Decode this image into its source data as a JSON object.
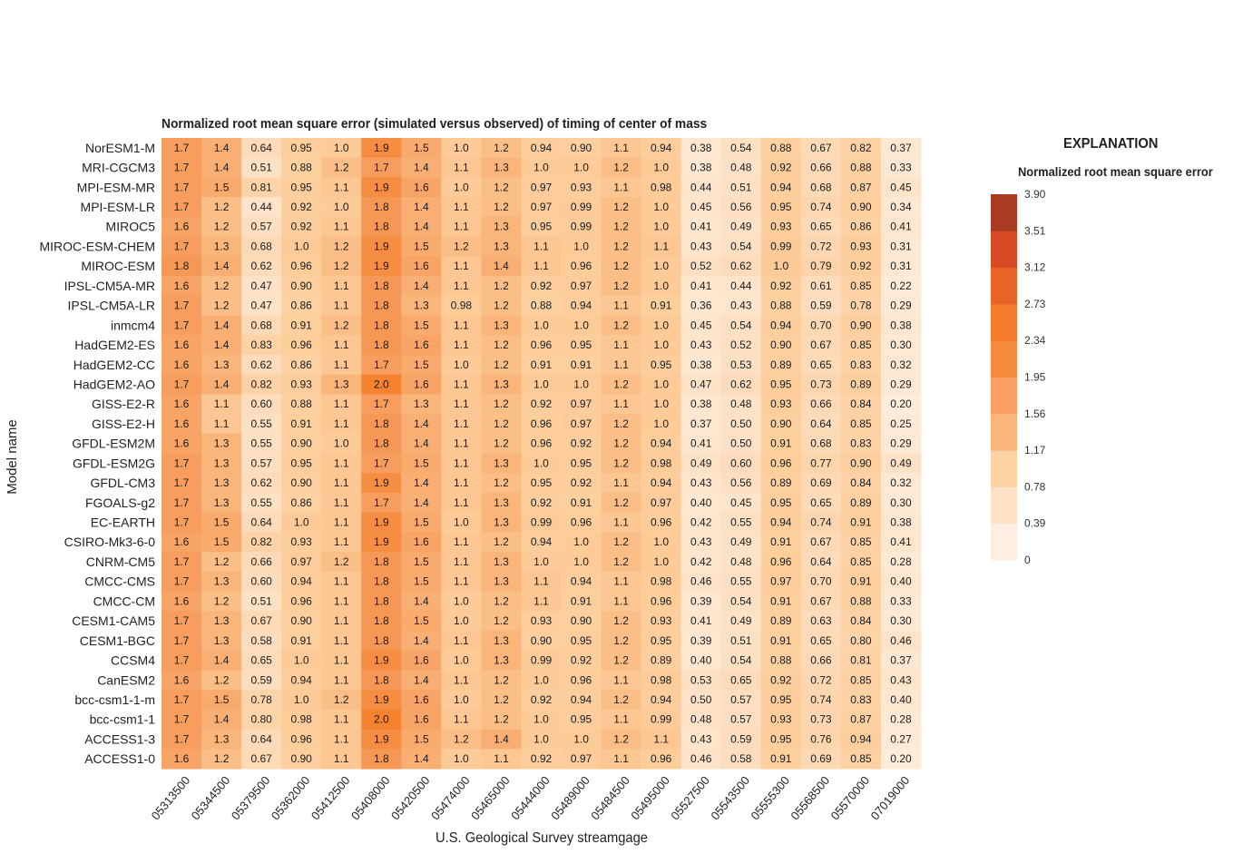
{
  "chart_data": {
    "type": "heatmap",
    "title": "Normalized root mean square error (simulated versus observed) of timing of center of mass",
    "xlabel": "U.S. Geological Survey streamgage",
    "ylabel": "Model name",
    "columns": [
      "05313500",
      "05344500",
      "05379500",
      "05362000",
      "05412500",
      "05408000",
      "05420500",
      "05474000",
      "05465000",
      "05444000",
      "05489000",
      "05484500",
      "05495000",
      "05527500",
      "05543500",
      "05555300",
      "05568500",
      "05570000",
      "07019000"
    ],
    "rows": [
      "NorESM1-M",
      "MRI-CGCM3",
      "MPI-ESM-MR",
      "MPI-ESM-LR",
      "MIROC5",
      "MIROC-ESM-CHEM",
      "MIROC-ESM",
      "IPSL-CM5A-MR",
      "IPSL-CM5A-LR",
      "inmcm4",
      "HadGEM2-ES",
      "HadGEM2-CC",
      "HadGEM2-AO",
      "GISS-E2-R",
      "GISS-E2-H",
      "GFDL-ESM2M",
      "GFDL-ESM2G",
      "GFDL-CM3",
      "FGOALS-g2",
      "EC-EARTH",
      "CSIRO-Mk3-6-0",
      "CNRM-CM5",
      "CMCC-CMS",
      "CMCC-CM",
      "CESM1-CAM5",
      "CESM1-BGC",
      "CCSM4",
      "CanESM2",
      "bcc-csm1-1-m",
      "bcc-csm1-1",
      "ACCESS1-3",
      "ACCESS1-0"
    ],
    "values": [
      [
        "1.7",
        "1.4",
        "0.64",
        "0.95",
        "1.0",
        "1.9",
        "1.5",
        "1.0",
        "1.2",
        "0.94",
        "0.90",
        "1.1",
        "0.94",
        "0.38",
        "0.54",
        "0.88",
        "0.67",
        "0.82",
        "0.37"
      ],
      [
        "1.7",
        "1.4",
        "0.51",
        "0.88",
        "1.2",
        "1.7",
        "1.4",
        "1.1",
        "1.3",
        "1.0",
        "1.0",
        "1.2",
        "1.0",
        "0.38",
        "0.48",
        "0.92",
        "0.66",
        "0.88",
        "0.33"
      ],
      [
        "1.7",
        "1.5",
        "0.81",
        "0.95",
        "1.1",
        "1.9",
        "1.6",
        "1.0",
        "1.2",
        "0.97",
        "0.93",
        "1.1",
        "0.98",
        "0.44",
        "0.51",
        "0.94",
        "0.68",
        "0.87",
        "0.45"
      ],
      [
        "1.7",
        "1.2",
        "0.44",
        "0.92",
        "1.0",
        "1.8",
        "1.4",
        "1.1",
        "1.2",
        "0.97",
        "0.99",
        "1.2",
        "1.0",
        "0.45",
        "0.56",
        "0.95",
        "0.74",
        "0.90",
        "0.34"
      ],
      [
        "1.6",
        "1.2",
        "0.57",
        "0.92",
        "1.1",
        "1.8",
        "1.4",
        "1.1",
        "1.3",
        "0.95",
        "0.99",
        "1.2",
        "1.0",
        "0.41",
        "0.49",
        "0.93",
        "0.65",
        "0.86",
        "0.41"
      ],
      [
        "1.7",
        "1.3",
        "0.68",
        "1.0",
        "1.2",
        "1.9",
        "1.5",
        "1.2",
        "1.3",
        "1.1",
        "1.0",
        "1.2",
        "1.1",
        "0.43",
        "0.54",
        "0.99",
        "0.72",
        "0.93",
        "0.31"
      ],
      [
        "1.8",
        "1.4",
        "0.62",
        "0.96",
        "1.2",
        "1.9",
        "1.6",
        "1.1",
        "1.4",
        "1.1",
        "0.96",
        "1.2",
        "1.0",
        "0.52",
        "0.62",
        "1.0",
        "0.79",
        "0.92",
        "0.31"
      ],
      [
        "1.6",
        "1.2",
        "0.47",
        "0.90",
        "1.1",
        "1.8",
        "1.4",
        "1.1",
        "1.2",
        "0.92",
        "0.97",
        "1.2",
        "1.0",
        "0.41",
        "0.44",
        "0.92",
        "0.61",
        "0.85",
        "0.22"
      ],
      [
        "1.7",
        "1.2",
        "0.47",
        "0.86",
        "1.1",
        "1.8",
        "1.3",
        "0.98",
        "1.2",
        "0.88",
        "0.94",
        "1.1",
        "0.91",
        "0.36",
        "0.43",
        "0.88",
        "0.59",
        "0.78",
        "0.29"
      ],
      [
        "1.7",
        "1.4",
        "0.68",
        "0.91",
        "1.2",
        "1.8",
        "1.5",
        "1.1",
        "1.3",
        "1.0",
        "1.0",
        "1.2",
        "1.0",
        "0.45",
        "0.54",
        "0.94",
        "0.70",
        "0.90",
        "0.38"
      ],
      [
        "1.6",
        "1.4",
        "0.83",
        "0.96",
        "1.1",
        "1.8",
        "1.6",
        "1.1",
        "1.2",
        "0.96",
        "0.95",
        "1.1",
        "1.0",
        "0.43",
        "0.52",
        "0.90",
        "0.67",
        "0.85",
        "0.30"
      ],
      [
        "1.6",
        "1.3",
        "0.62",
        "0.86",
        "1.1",
        "1.7",
        "1.5",
        "1.0",
        "1.2",
        "0.91",
        "0.91",
        "1.1",
        "0.95",
        "0.38",
        "0.53",
        "0.89",
        "0.65",
        "0.83",
        "0.32"
      ],
      [
        "1.7",
        "1.4",
        "0.82",
        "0.93",
        "1.3",
        "2.0",
        "1.6",
        "1.1",
        "1.3",
        "1.0",
        "1.0",
        "1.2",
        "1.0",
        "0.47",
        "0.62",
        "0.95",
        "0.73",
        "0.89",
        "0.29"
      ],
      [
        "1.6",
        "1.1",
        "0.60",
        "0.88",
        "1.1",
        "1.7",
        "1.3",
        "1.1",
        "1.2",
        "0.92",
        "0.97",
        "1.1",
        "1.0",
        "0.38",
        "0.48",
        "0.93",
        "0.66",
        "0.84",
        "0.20"
      ],
      [
        "1.6",
        "1.1",
        "0.55",
        "0.91",
        "1.1",
        "1.8",
        "1.4",
        "1.1",
        "1.2",
        "0.96",
        "0.97",
        "1.2",
        "1.0",
        "0.37",
        "0.50",
        "0.90",
        "0.64",
        "0.85",
        "0.25"
      ],
      [
        "1.6",
        "1.3",
        "0.55",
        "0.90",
        "1.0",
        "1.8",
        "1.4",
        "1.1",
        "1.2",
        "0.96",
        "0.92",
        "1.2",
        "0.94",
        "0.41",
        "0.50",
        "0.91",
        "0.68",
        "0.83",
        "0.29"
      ],
      [
        "1.7",
        "1.3",
        "0.57",
        "0.95",
        "1.1",
        "1.7",
        "1.5",
        "1.1",
        "1.3",
        "1.0",
        "0.95",
        "1.2",
        "0.98",
        "0.49",
        "0.60",
        "0.96",
        "0.77",
        "0.90",
        "0.49"
      ],
      [
        "1.7",
        "1.3",
        "0.62",
        "0.90",
        "1.1",
        "1.9",
        "1.4",
        "1.1",
        "1.2",
        "0.95",
        "0.92",
        "1.1",
        "0.94",
        "0.43",
        "0.56",
        "0.89",
        "0.69",
        "0.84",
        "0.32"
      ],
      [
        "1.7",
        "1.3",
        "0.55",
        "0.86",
        "1.1",
        "1.7",
        "1.4",
        "1.1",
        "1.3",
        "0.92",
        "0.91",
        "1.2",
        "0.97",
        "0.40",
        "0.45",
        "0.95",
        "0.65",
        "0.89",
        "0.30"
      ],
      [
        "1.7",
        "1.5",
        "0.64",
        "1.0",
        "1.1",
        "1.9",
        "1.5",
        "1.0",
        "1.3",
        "0.99",
        "0.96",
        "1.1",
        "0.96",
        "0.42",
        "0.55",
        "0.94",
        "0.74",
        "0.91",
        "0.38"
      ],
      [
        "1.6",
        "1.5",
        "0.82",
        "0.93",
        "1.1",
        "1.9",
        "1.6",
        "1.1",
        "1.2",
        "0.94",
        "1.0",
        "1.2",
        "1.0",
        "0.43",
        "0.49",
        "0.91",
        "0.67",
        "0.85",
        "0.41"
      ],
      [
        "1.7",
        "1.2",
        "0.66",
        "0.97",
        "1.2",
        "1.8",
        "1.5",
        "1.1",
        "1.3",
        "1.0",
        "1.0",
        "1.2",
        "1.0",
        "0.42",
        "0.48",
        "0.96",
        "0.64",
        "0.85",
        "0.28"
      ],
      [
        "1.7",
        "1.3",
        "0.60",
        "0.94",
        "1.1",
        "1.8",
        "1.5",
        "1.1",
        "1.3",
        "1.1",
        "0.94",
        "1.1",
        "0.98",
        "0.46",
        "0.55",
        "0.97",
        "0.70",
        "0.91",
        "0.40"
      ],
      [
        "1.6",
        "1.2",
        "0.51",
        "0.96",
        "1.1",
        "1.8",
        "1.4",
        "1.0",
        "1.2",
        "1.1",
        "0.91",
        "1.1",
        "0.96",
        "0.39",
        "0.54",
        "0.91",
        "0.67",
        "0.88",
        "0.33"
      ],
      [
        "1.7",
        "1.3",
        "0.67",
        "0.90",
        "1.1",
        "1.8",
        "1.5",
        "1.0",
        "1.2",
        "0.93",
        "0.90",
        "1.2",
        "0.93",
        "0.41",
        "0.49",
        "0.89",
        "0.63",
        "0.84",
        "0.30"
      ],
      [
        "1.7",
        "1.3",
        "0.58",
        "0.91",
        "1.1",
        "1.8",
        "1.4",
        "1.1",
        "1.3",
        "0.90",
        "0.95",
        "1.2",
        "0.95",
        "0.39",
        "0.51",
        "0.91",
        "0.65",
        "0.80",
        "0.46"
      ],
      [
        "1.7",
        "1.4",
        "0.65",
        "1.0",
        "1.1",
        "1.9",
        "1.6",
        "1.0",
        "1.3",
        "0.99",
        "0.92",
        "1.2",
        "0.89",
        "0.40",
        "0.54",
        "0.88",
        "0.66",
        "0.81",
        "0.37"
      ],
      [
        "1.6",
        "1.2",
        "0.59",
        "0.94",
        "1.1",
        "1.8",
        "1.4",
        "1.1",
        "1.2",
        "1.0",
        "0.96",
        "1.1",
        "0.98",
        "0.53",
        "0.65",
        "0.92",
        "0.72",
        "0.85",
        "0.43"
      ],
      [
        "1.7",
        "1.5",
        "0.78",
        "1.0",
        "1.2",
        "1.9",
        "1.6",
        "1.0",
        "1.2",
        "0.92",
        "0.94",
        "1.2",
        "0.94",
        "0.50",
        "0.57",
        "0.95",
        "0.74",
        "0.83",
        "0.40"
      ],
      [
        "1.7",
        "1.4",
        "0.80",
        "0.98",
        "1.1",
        "2.0",
        "1.6",
        "1.1",
        "1.2",
        "1.0",
        "0.95",
        "1.1",
        "0.99",
        "0.48",
        "0.57",
        "0.93",
        "0.73",
        "0.87",
        "0.28"
      ],
      [
        "1.7",
        "1.3",
        "0.64",
        "0.96",
        "1.1",
        "1.9",
        "1.5",
        "1.2",
        "1.4",
        "1.0",
        "1.0",
        "1.2",
        "1.1",
        "0.43",
        "0.59",
        "0.95",
        "0.76",
        "0.94",
        "0.27"
      ],
      [
        "1.6",
        "1.2",
        "0.67",
        "0.90",
        "1.1",
        "1.8",
        "1.4",
        "1.0",
        "1.1",
        "0.92",
        "0.97",
        "1.1",
        "0.96",
        "0.46",
        "0.58",
        "0.91",
        "0.69",
        "0.85",
        "0.20"
      ]
    ],
    "legend": {
      "title": "EXPLANATION",
      "subtitle": "Normalized root mean square error",
      "ticks": [
        "0",
        "0.39",
        "0.78",
        "1.17",
        "1.56",
        "1.95",
        "2.34",
        "2.73",
        "3.12",
        "3.51",
        "3.90"
      ],
      "colors": [
        "#fff0e3",
        "#fee2c8",
        "#fdd3a6",
        "#fbb57c",
        "#f9a063",
        "#f58b3f",
        "#f47b2b",
        "#ea6326",
        "#d94a26",
        "#aa3a22",
        "#8b2a1b"
      ],
      "placement": "right"
    },
    "value_range": [
      0,
      3.9
    ]
  }
}
